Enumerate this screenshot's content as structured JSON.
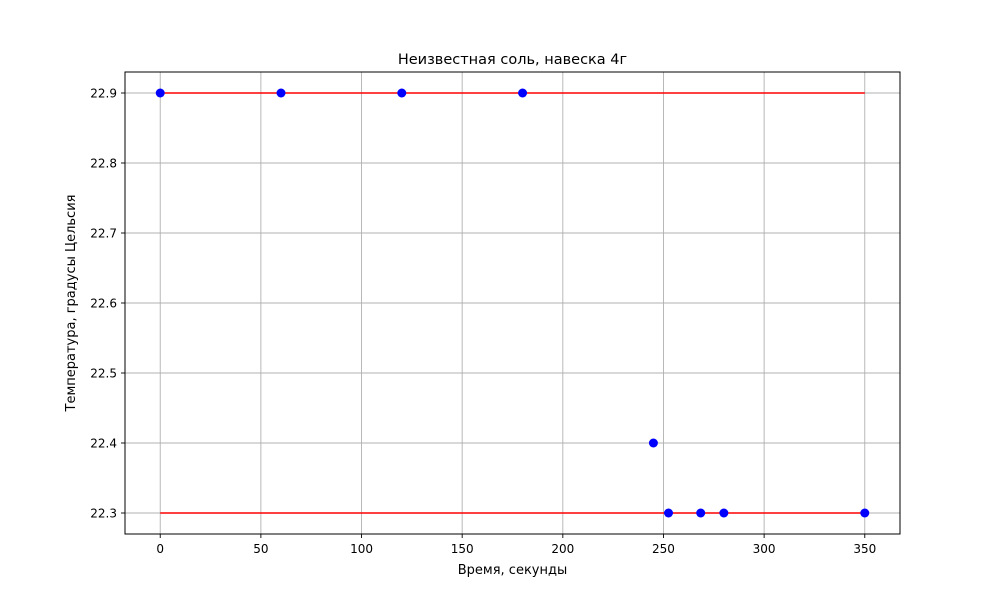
{
  "chart_data": {
    "type": "scatter",
    "title": "Неизвестная соль, навеска 4г",
    "xlabel": "Время, секунды",
    "ylabel": "Температура, градусы Цельсия",
    "xlim": [
      -17.5,
      367.5
    ],
    "ylim": [
      22.27,
      22.93
    ],
    "x_ticks": [
      0,
      50,
      100,
      150,
      200,
      250,
      300,
      350
    ],
    "x_tick_labels": [
      "0",
      "50",
      "100",
      "150",
      "200",
      "250",
      "300",
      "350"
    ],
    "y_ticks": [
      22.3,
      22.4,
      22.5,
      22.6,
      22.7,
      22.8,
      22.9
    ],
    "y_tick_labels": [
      "22.3",
      "22.4",
      "22.5",
      "22.6",
      "22.7",
      "22.8",
      "22.9"
    ],
    "grid": true,
    "series": [
      {
        "kind": "line",
        "color": "#ff0000",
        "x": [
          0,
          350
        ],
        "y": [
          22.9,
          22.9
        ]
      },
      {
        "kind": "line",
        "color": "#ff0000",
        "x": [
          0,
          350
        ],
        "y": [
          22.3,
          22.3
        ]
      },
      {
        "kind": "scatter",
        "color": "#0000ff",
        "x": [
          0,
          60,
          120,
          180,
          245,
          252.5,
          268.5,
          280,
          350
        ],
        "y": [
          22.9,
          22.9,
          22.9,
          22.9,
          22.4,
          22.3,
          22.3,
          22.3,
          22.3
        ]
      }
    ]
  }
}
